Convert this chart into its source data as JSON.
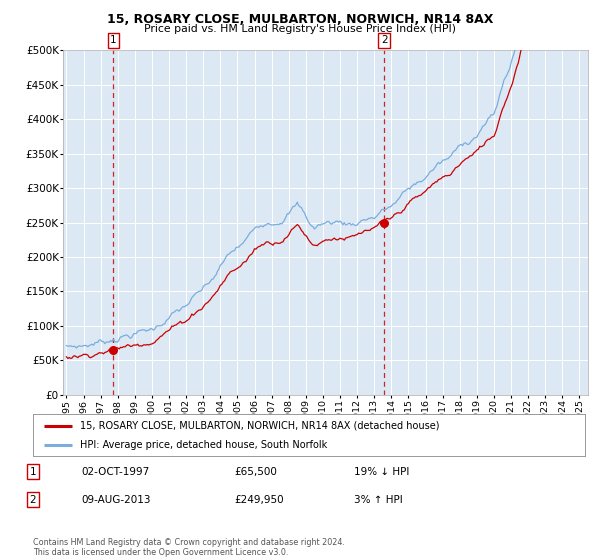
{
  "title1": "15, ROSARY CLOSE, MULBARTON, NORWICH, NR14 8AX",
  "title2": "Price paid vs. HM Land Registry's House Price Index (HPI)",
  "legend_line1": "15, ROSARY CLOSE, MULBARTON, NORWICH, NR14 8AX (detached house)",
  "legend_line2": "HPI: Average price, detached house, South Norfolk",
  "annotation1_label": "1",
  "annotation1_date": "02-OCT-1997",
  "annotation1_price": "£65,500",
  "annotation1_hpi": "19% ↓ HPI",
  "annotation2_label": "2",
  "annotation2_date": "09-AUG-2013",
  "annotation2_price": "£249,950",
  "annotation2_hpi": "3% ↑ HPI",
  "copyright": "Contains HM Land Registry data © Crown copyright and database right 2024.\nThis data is licensed under the Open Government Licence v3.0.",
  "hpi_color": "#7aaddc",
  "price_color": "#cc0000",
  "marker_color": "#cc0000",
  "bg_color": "#dce9f5",
  "grid_color": "#c8d8e8",
  "vline_color": "#cc0000",
  "sale1_year": 1997.75,
  "sale1_value": 65500,
  "sale2_year": 2013.58,
  "sale2_value": 249950,
  "ylim": [
    0,
    500000
  ],
  "yticks": [
    0,
    50000,
    100000,
    150000,
    200000,
    250000,
    300000,
    350000,
    400000,
    450000,
    500000
  ],
  "xmin": 1994.8,
  "xmax": 2025.5
}
